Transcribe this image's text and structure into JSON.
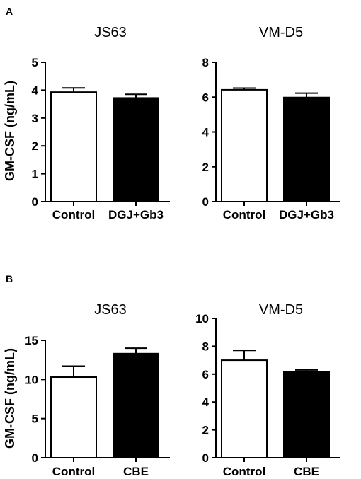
{
  "panels": [
    {
      "letter": "A",
      "ylabel": "GM-CSF (ng/mL)"
    },
    {
      "letter": "B",
      "ylabel": "GM-CSF (ng/mL)"
    }
  ],
  "chart_data": [
    {
      "type": "bar",
      "title": "JS63",
      "categories": [
        "Control",
        "DGJ+Gb3"
      ],
      "values": [
        3.93,
        3.72
      ],
      "errors": [
        0.15,
        0.13
      ],
      "bar_colors": [
        "#ffffff",
        "#000000"
      ],
      "ylabel": "GM-CSF (ng/mL)",
      "ylim": [
        0,
        5
      ],
      "yticks": [
        0,
        1,
        2,
        3,
        4,
        5
      ]
    },
    {
      "type": "bar",
      "title": "VM-D5",
      "categories": [
        "Control",
        "DGJ+Gb3"
      ],
      "values": [
        6.42,
        5.98
      ],
      "errors": [
        0.1,
        0.25
      ],
      "bar_colors": [
        "#ffffff",
        "#000000"
      ],
      "ylabel": "",
      "ylim": [
        0,
        8
      ],
      "yticks": [
        0,
        2,
        4,
        6,
        8
      ]
    },
    {
      "type": "bar",
      "title": "JS63",
      "categories": [
        "Control",
        "CBE"
      ],
      "values": [
        10.3,
        13.3
      ],
      "errors": [
        1.4,
        0.7
      ],
      "bar_colors": [
        "#ffffff",
        "#000000"
      ],
      "ylabel": "GM-CSF (ng/mL)",
      "ylim": [
        0,
        15
      ],
      "yticks": [
        0,
        5,
        10,
        15
      ]
    },
    {
      "type": "bar",
      "title": "VM-D5",
      "categories": [
        "Control",
        "CBE"
      ],
      "values": [
        7.0,
        6.15
      ],
      "errors": [
        0.7,
        0.15
      ],
      "bar_colors": [
        "#ffffff",
        "#000000"
      ],
      "ylabel": "",
      "ylim": [
        0,
        10
      ],
      "yticks": [
        0,
        2,
        4,
        6,
        8,
        10
      ]
    }
  ]
}
